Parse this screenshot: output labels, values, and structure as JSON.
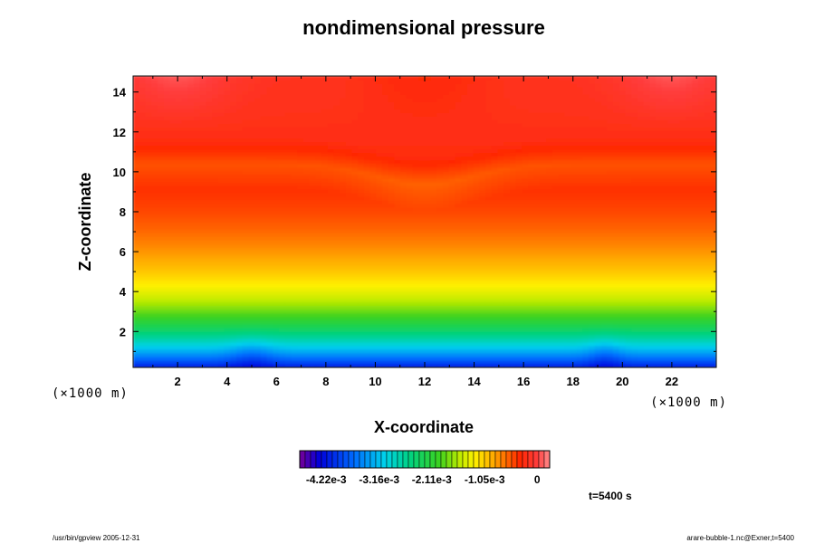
{
  "chart_data": {
    "type": "heatmap",
    "title": "nondimensional pressure",
    "xlabel": "X-coordinate",
    "ylabel": "Z-coordinate",
    "x_unit": "(×1000 m)",
    "y_unit": "(×1000 m)",
    "xlim": [
      0.2,
      23.8
    ],
    "ylim": [
      0.2,
      14.8
    ],
    "x_ticks": [
      2,
      4,
      6,
      8,
      10,
      12,
      14,
      16,
      18,
      20,
      22
    ],
    "x_tick_labels": [
      "2",
      "4",
      "6",
      "8",
      "10",
      "12",
      "14",
      "16",
      "18",
      "20",
      "22"
    ],
    "y_ticks": [
      2,
      4,
      6,
      8,
      10,
      12,
      14
    ],
    "y_tick_labels": [
      "2",
      "4",
      "6",
      "8",
      "10",
      "12",
      "14"
    ],
    "colorbar": {
      "range": [
        -0.00475,
        0.00025
      ],
      "n_levels": 46,
      "tick_values": [
        -0.00422,
        -0.00316,
        -0.00211,
        -0.00105,
        0
      ],
      "tick_labels": [
        "-4.22e-3",
        "-3.16e-3",
        "-2.11e-3",
        "-1.05e-3",
        "0"
      ]
    },
    "time_label": "t=5400 s"
  },
  "footer": {
    "left": "/usr/bin/gpview 2005-12-31",
    "right": "arare-bubble-1.nc@Exner,t=5400"
  }
}
